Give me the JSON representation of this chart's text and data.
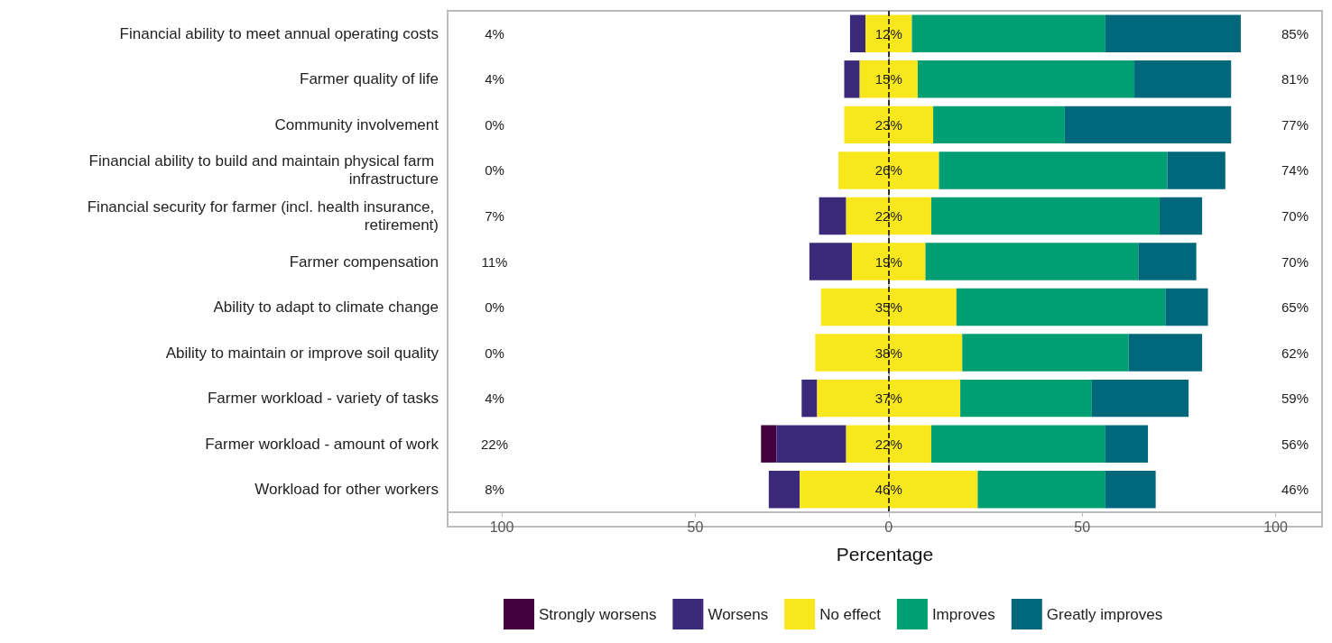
{
  "chart_data": {
    "type": "bar",
    "orientation": "horizontal",
    "xlabel": "Percentage",
    "legend": "bottom",
    "grid": false,
    "categories": [
      "Financial ability to meet annual operating costs",
      "Farmer quality of life",
      "Community involvement",
      "Financial ability to build and maintain physical farm infrastructure",
      "Financial security for farmer (incl. health insurance, retirement)",
      "Farmer compensation",
      "Ability to adapt to climate change",
      "Ability to maintain or improve soil quality",
      "Farmer workload - variety of tasks",
      "Farmer workload - amount of work",
      "Workload for other workers"
    ],
    "xlim": [
      -114,
      112
    ],
    "xticks": [
      {
        "value": -100,
        "label": "100"
      },
      {
        "value": -50,
        "label": "50"
      },
      0,
      50,
      100
    ],
    "ref_lines": [
      {
        "axis": "x",
        "value": 0,
        "line_style": "dashed",
        "color": "#000000"
      }
    ],
    "series": [
      {
        "name": "Strongly worsens",
        "color": "#42003f",
        "values": [
          0,
          0,
          0,
          0,
          0,
          0,
          0,
          0,
          0,
          4,
          0
        ],
        "base": [
          null,
          null,
          null,
          null,
          null,
          null,
          null,
          null,
          null,
          -33,
          null
        ]
      },
      {
        "name": "Worsens",
        "color": "#3b2a7a",
        "values": [
          4,
          4,
          0,
          0,
          7,
          11,
          0,
          0,
          4,
          18,
          8
        ],
        "base": [
          -10,
          -11.5,
          null,
          null,
          -18,
          -20.5,
          null,
          null,
          -22.5,
          -29,
          -31
        ]
      },
      {
        "name": "No effect",
        "color": "#f8e71c",
        "values": [
          12,
          15,
          23,
          26,
          22,
          19,
          35,
          38,
          37,
          22,
          46
        ],
        "base": [
          -6,
          -7.5,
          -11.5,
          -13,
          -11,
          -9.5,
          -17.5,
          -19,
          -18.5,
          -11,
          -23
        ],
        "value_labels": [
          "12%",
          "15%",
          "23%",
          "26%",
          "22%",
          "19%",
          "35%",
          "38%",
          "37%",
          "22%",
          "46%"
        ]
      },
      {
        "name": "Improves",
        "color": "#009e73",
        "values": [
          50,
          56,
          34,
          59,
          59,
          55,
          54,
          43,
          34,
          45,
          33
        ],
        "base": [
          6,
          7.5,
          11.5,
          13,
          11,
          9.5,
          17.5,
          19,
          18.5,
          11,
          23
        ]
      },
      {
        "name": "Greatly improves",
        "color": "#00687a",
        "values": [
          35,
          25,
          43,
          15,
          11,
          15,
          11,
          19,
          25,
          11,
          13
        ],
        "base": [
          56,
          63.5,
          45.5,
          72,
          70,
          64.5,
          71.5,
          62,
          52.5,
          56,
          56
        ]
      }
    ],
    "annotations": [
      "4%",
      "4%",
      "0%",
      "0%",
      "7%",
      "11%",
      "0%",
      "0%",
      "4%",
      "22%",
      "8%",
      "85%",
      "81%",
      "77%",
      "74%",
      "70%",
      "70%",
      "65%",
      "62%",
      "59%",
      "56%",
      "46%"
    ]
  }
}
